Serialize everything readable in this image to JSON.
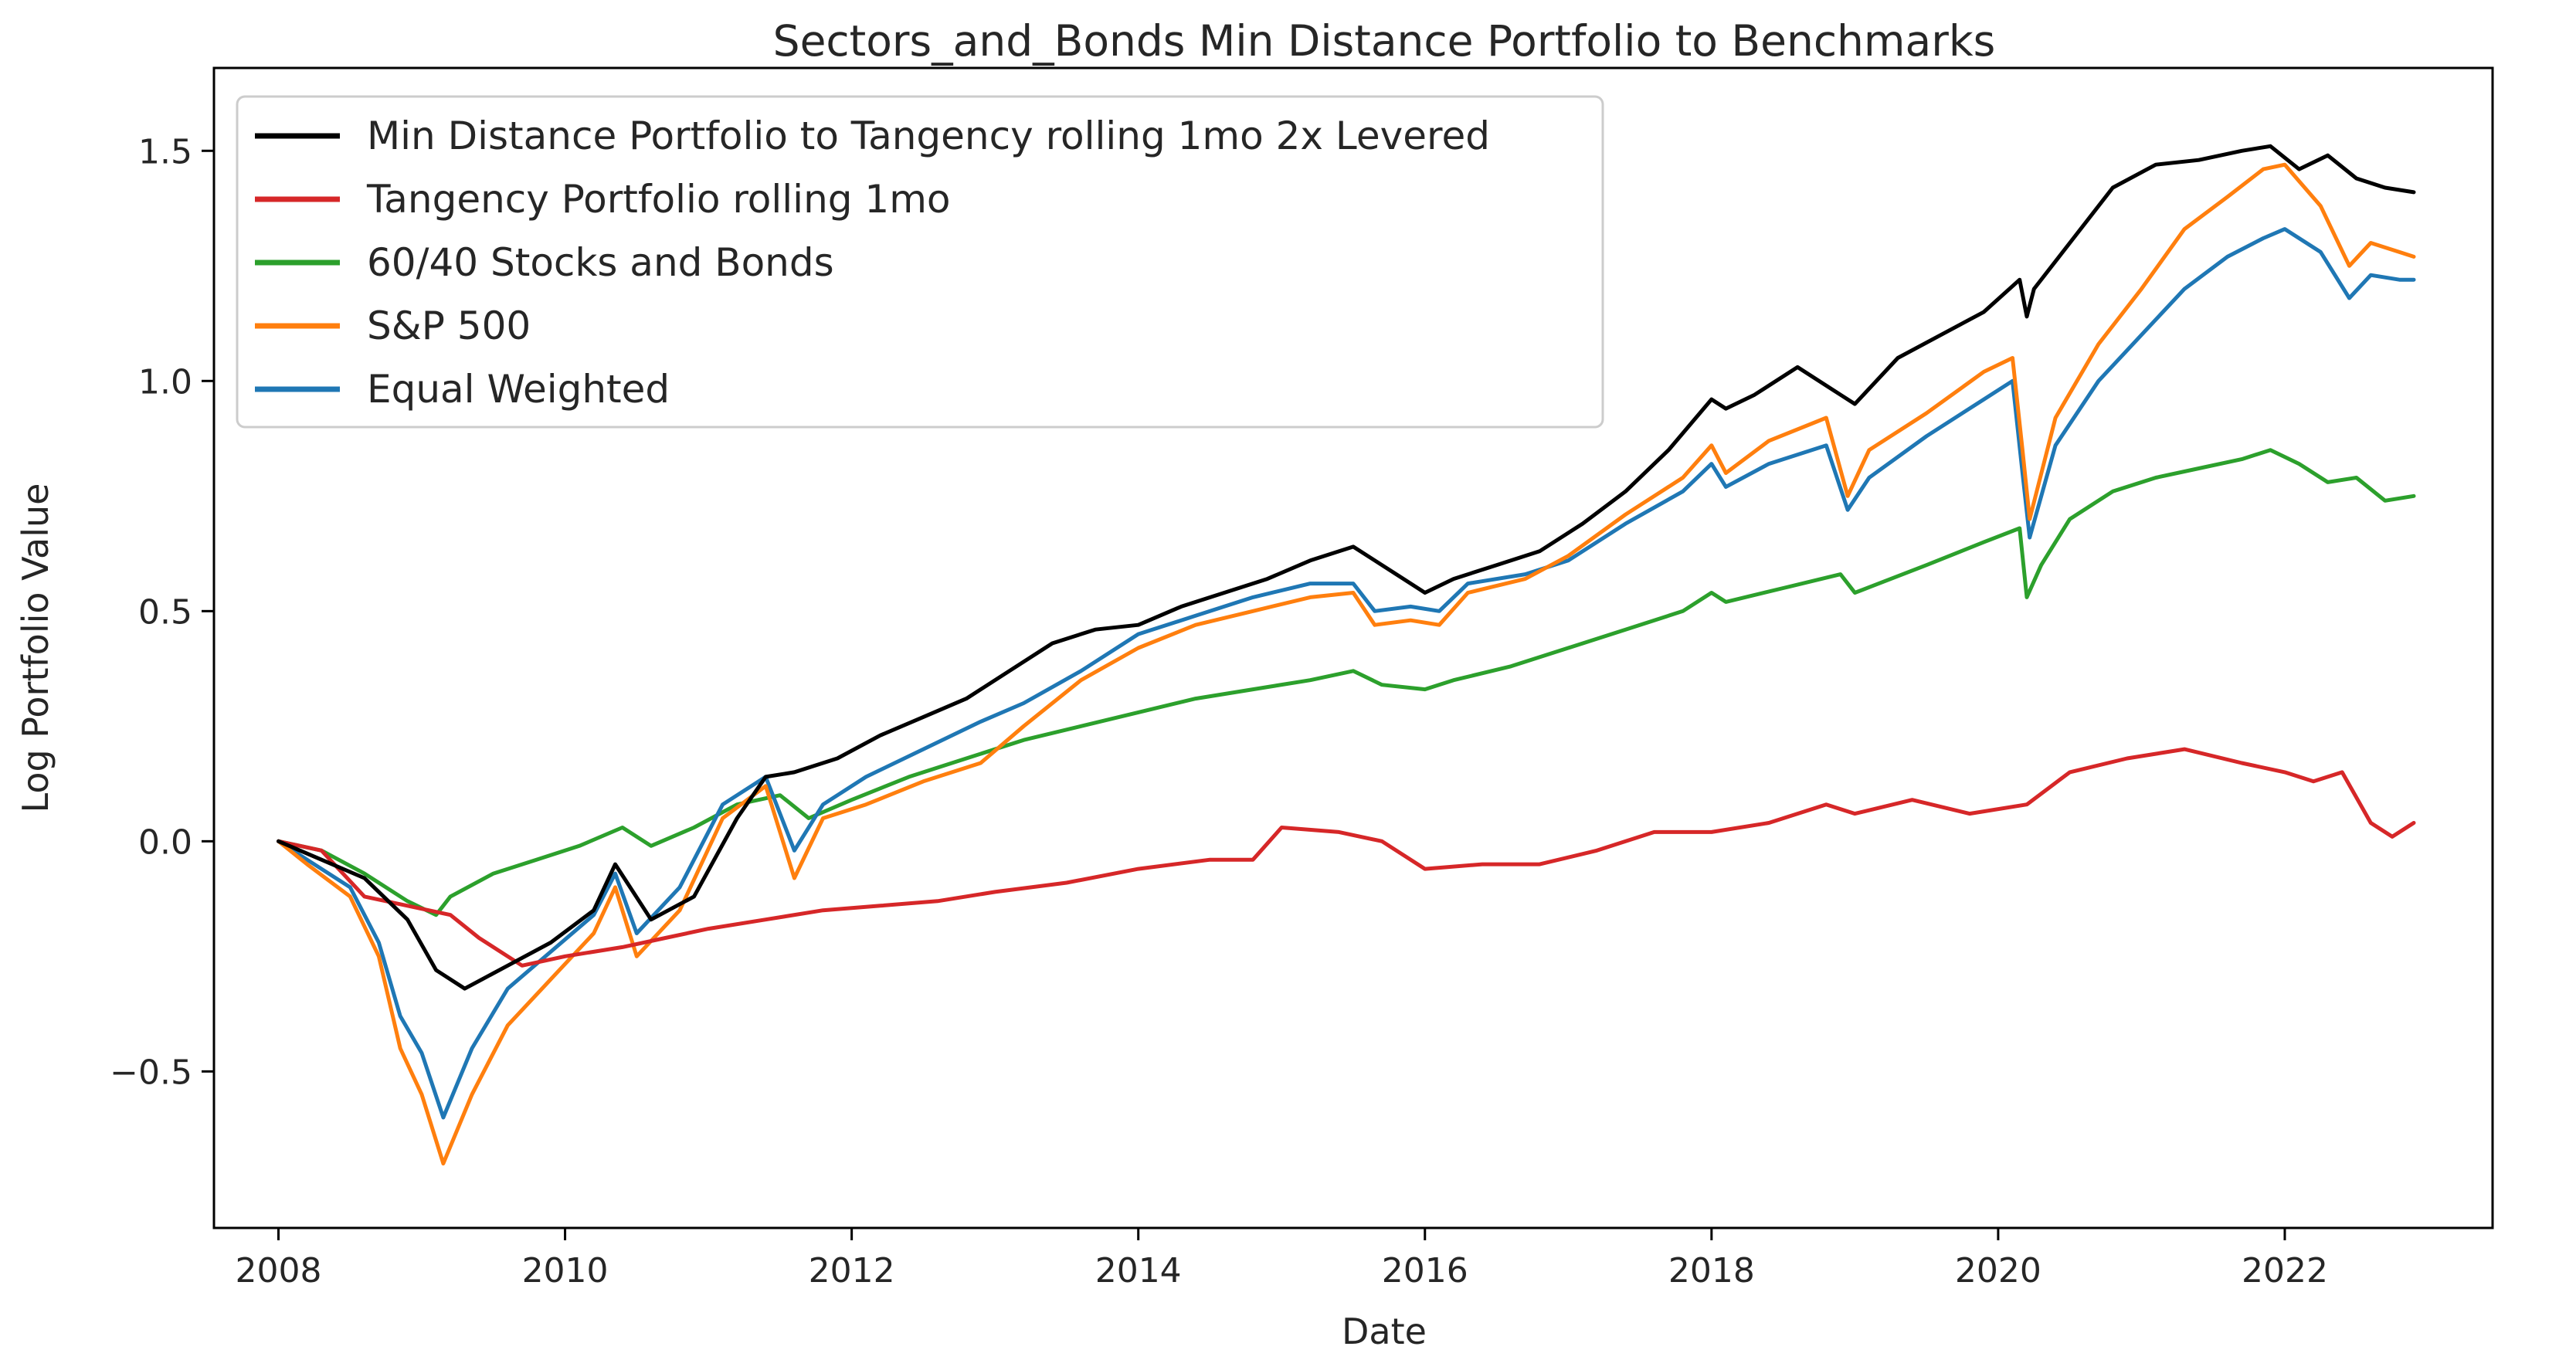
{
  "chart_data": {
    "type": "line",
    "title": "Sectors_and_Bonds Min Distance Portfolio to Benchmarks",
    "xlabel": "Date",
    "ylabel": "Log Portfolio Value",
    "xlim": [
      2007.55,
      2023.45
    ],
    "ylim": [
      -0.84,
      1.68
    ],
    "xticks": [
      2008,
      2010,
      2012,
      2014,
      2016,
      2018,
      2020,
      2022
    ],
    "xtick_labels": [
      "2008",
      "2010",
      "2012",
      "2014",
      "2016",
      "2018",
      "2020",
      "2022"
    ],
    "yticks": [
      -0.5,
      0.0,
      0.5,
      1.0,
      1.5
    ],
    "ytick_labels": [
      "−0.5",
      "0.0",
      "0.5",
      "1.0",
      "1.5"
    ],
    "grid": false,
    "legend_location": "upper-left",
    "series": [
      {
        "name": "Min Distance Portfolio to Tangency rolling 1mo 2x Levered",
        "color": "#000000",
        "x": [
          2008.0,
          2008.3,
          2008.6,
          2008.9,
          2009.1,
          2009.3,
          2009.6,
          2009.9,
          2010.2,
          2010.35,
          2010.6,
          2010.9,
          2011.2,
          2011.4,
          2011.6,
          2011.9,
          2012.2,
          2012.5,
          2012.8,
          2013.1,
          2013.4,
          2013.7,
          2014.0,
          2014.3,
          2014.6,
          2014.9,
          2015.2,
          2015.5,
          2015.8,
          2016.0,
          2016.2,
          2016.5,
          2016.8,
          2017.1,
          2017.4,
          2017.7,
          2018.0,
          2018.1,
          2018.3,
          2018.6,
          2018.9,
          2019.0,
          2019.3,
          2019.6,
          2019.9,
          2020.15,
          2020.2,
          2020.25,
          2020.5,
          2020.8,
          2021.1,
          2021.4,
          2021.7,
          2021.9,
          2022.1,
          2022.3,
          2022.5,
          2022.7,
          2022.9
        ],
        "y": [
          0.0,
          -0.04,
          -0.08,
          -0.17,
          -0.28,
          -0.32,
          -0.27,
          -0.22,
          -0.15,
          -0.05,
          -0.17,
          -0.12,
          0.05,
          0.14,
          0.15,
          0.18,
          0.23,
          0.27,
          0.31,
          0.37,
          0.43,
          0.46,
          0.47,
          0.51,
          0.54,
          0.57,
          0.61,
          0.64,
          0.58,
          0.54,
          0.57,
          0.6,
          0.63,
          0.69,
          0.76,
          0.85,
          0.96,
          0.94,
          0.97,
          1.03,
          0.97,
          0.95,
          1.05,
          1.1,
          1.15,
          1.22,
          1.14,
          1.2,
          1.3,
          1.42,
          1.47,
          1.48,
          1.5,
          1.51,
          1.46,
          1.49,
          1.44,
          1.42,
          1.41
        ]
      },
      {
        "name": "Tangency Portfolio rolling 1mo",
        "color": "#d62728",
        "x": [
          2008.0,
          2008.3,
          2008.6,
          2008.9,
          2009.2,
          2009.4,
          2009.7,
          2010.0,
          2010.4,
          2010.7,
          2011.0,
          2011.4,
          2011.8,
          2012.2,
          2012.6,
          2013.0,
          2013.5,
          2014.0,
          2014.5,
          2014.8,
          2015.0,
          2015.4,
          2015.7,
          2016.0,
          2016.4,
          2016.8,
          2017.2,
          2017.6,
          2018.0,
          2018.4,
          2018.8,
          2019.0,
          2019.4,
          2019.8,
          2020.2,
          2020.5,
          2020.9,
          2021.3,
          2021.7,
          2022.0,
          2022.2,
          2022.4,
          2022.6,
          2022.75,
          2022.9
        ],
        "y": [
          0.0,
          -0.02,
          -0.12,
          -0.14,
          -0.16,
          -0.21,
          -0.27,
          -0.25,
          -0.23,
          -0.21,
          -0.19,
          -0.17,
          -0.15,
          -0.14,
          -0.13,
          -0.11,
          -0.09,
          -0.06,
          -0.04,
          -0.04,
          0.03,
          0.02,
          0.0,
          -0.06,
          -0.05,
          -0.05,
          -0.02,
          0.02,
          0.02,
          0.04,
          0.08,
          0.06,
          0.09,
          0.06,
          0.08,
          0.15,
          0.18,
          0.2,
          0.17,
          0.15,
          0.13,
          0.15,
          0.04,
          0.01,
          0.04
        ]
      },
      {
        "name": "60/40 Stocks and Bonds",
        "color": "#2ca02c",
        "x": [
          2008.0,
          2008.3,
          2008.6,
          2008.9,
          2009.1,
          2009.2,
          2009.5,
          2009.8,
          2010.1,
          2010.4,
          2010.6,
          2010.9,
          2011.2,
          2011.5,
          2011.7,
          2012.0,
          2012.4,
          2012.8,
          2013.2,
          2013.6,
          2014.0,
          2014.4,
          2014.8,
          2015.2,
          2015.5,
          2015.7,
          2016.0,
          2016.2,
          2016.6,
          2017.0,
          2017.4,
          2017.8,
          2018.0,
          2018.1,
          2018.5,
          2018.9,
          2019.0,
          2019.5,
          2019.9,
          2020.15,
          2020.2,
          2020.3,
          2020.5,
          2020.8,
          2021.1,
          2021.4,
          2021.7,
          2021.9,
          2022.1,
          2022.3,
          2022.5,
          2022.7,
          2022.9
        ],
        "y": [
          0.0,
          -0.02,
          -0.07,
          -0.13,
          -0.16,
          -0.12,
          -0.07,
          -0.04,
          -0.01,
          0.03,
          -0.01,
          0.03,
          0.08,
          0.1,
          0.05,
          0.09,
          0.14,
          0.18,
          0.22,
          0.25,
          0.28,
          0.31,
          0.33,
          0.35,
          0.37,
          0.34,
          0.33,
          0.35,
          0.38,
          0.42,
          0.46,
          0.5,
          0.54,
          0.52,
          0.55,
          0.58,
          0.54,
          0.6,
          0.65,
          0.68,
          0.53,
          0.6,
          0.7,
          0.76,
          0.79,
          0.81,
          0.83,
          0.85,
          0.82,
          0.78,
          0.79,
          0.74,
          0.75
        ]
      },
      {
        "name": "S&P 500",
        "color": "#ff7f0e",
        "x": [
          2008.0,
          2008.2,
          2008.5,
          2008.7,
          2008.85,
          2009.0,
          2009.15,
          2009.35,
          2009.6,
          2009.9,
          2010.2,
          2010.35,
          2010.5,
          2010.8,
          2011.1,
          2011.4,
          2011.6,
          2011.8,
          2012.1,
          2012.5,
          2012.9,
          2013.2,
          2013.6,
          2014.0,
          2014.4,
          2014.8,
          2015.2,
          2015.5,
          2015.65,
          2015.9,
          2016.1,
          2016.3,
          2016.7,
          2017.0,
          2017.4,
          2017.8,
          2018.0,
          2018.1,
          2018.4,
          2018.8,
          2018.95,
          2019.1,
          2019.5,
          2019.9,
          2020.1,
          2020.17,
          2020.22,
          2020.4,
          2020.7,
          2021.0,
          2021.3,
          2021.6,
          2021.85,
          2022.0,
          2022.25,
          2022.45,
          2022.6,
          2022.8,
          2022.9
        ],
        "y": [
          0.0,
          -0.05,
          -0.12,
          -0.25,
          -0.45,
          -0.55,
          -0.7,
          -0.55,
          -0.4,
          -0.3,
          -0.2,
          -0.1,
          -0.25,
          -0.15,
          0.05,
          0.12,
          -0.08,
          0.05,
          0.08,
          0.13,
          0.17,
          0.25,
          0.35,
          0.42,
          0.47,
          0.5,
          0.53,
          0.54,
          0.47,
          0.48,
          0.47,
          0.54,
          0.57,
          0.62,
          0.71,
          0.79,
          0.86,
          0.8,
          0.87,
          0.92,
          0.75,
          0.85,
          0.93,
          1.02,
          1.05,
          0.85,
          0.7,
          0.92,
          1.08,
          1.2,
          1.33,
          1.4,
          1.46,
          1.47,
          1.38,
          1.25,
          1.3,
          1.28,
          1.27
        ]
      },
      {
        "name": "Equal Weighted",
        "color": "#1f77b4",
        "x": [
          2008.0,
          2008.2,
          2008.5,
          2008.7,
          2008.85,
          2009.0,
          2009.15,
          2009.35,
          2009.6,
          2009.9,
          2010.2,
          2010.35,
          2010.5,
          2010.8,
          2011.1,
          2011.4,
          2011.6,
          2011.8,
          2012.1,
          2012.5,
          2012.9,
          2013.2,
          2013.6,
          2014.0,
          2014.4,
          2014.8,
          2015.2,
          2015.5,
          2015.65,
          2015.9,
          2016.1,
          2016.3,
          2016.7,
          2017.0,
          2017.4,
          2017.8,
          2018.0,
          2018.1,
          2018.4,
          2018.8,
          2018.95,
          2019.1,
          2019.5,
          2019.9,
          2020.1,
          2020.17,
          2020.22,
          2020.4,
          2020.7,
          2021.0,
          2021.3,
          2021.6,
          2021.85,
          2022.0,
          2022.25,
          2022.45,
          2022.6,
          2022.8,
          2022.9
        ],
        "y": [
          0.0,
          -0.04,
          -0.1,
          -0.22,
          -0.38,
          -0.46,
          -0.6,
          -0.45,
          -0.32,
          -0.24,
          -0.16,
          -0.07,
          -0.2,
          -0.1,
          0.08,
          0.14,
          -0.02,
          0.08,
          0.14,
          0.2,
          0.26,
          0.3,
          0.37,
          0.45,
          0.49,
          0.53,
          0.56,
          0.56,
          0.5,
          0.51,
          0.5,
          0.56,
          0.58,
          0.61,
          0.69,
          0.76,
          0.82,
          0.77,
          0.82,
          0.86,
          0.72,
          0.79,
          0.88,
          0.96,
          1.0,
          0.8,
          0.66,
          0.86,
          1.0,
          1.1,
          1.2,
          1.27,
          1.31,
          1.33,
          1.28,
          1.18,
          1.23,
          1.22,
          1.22
        ]
      }
    ]
  }
}
